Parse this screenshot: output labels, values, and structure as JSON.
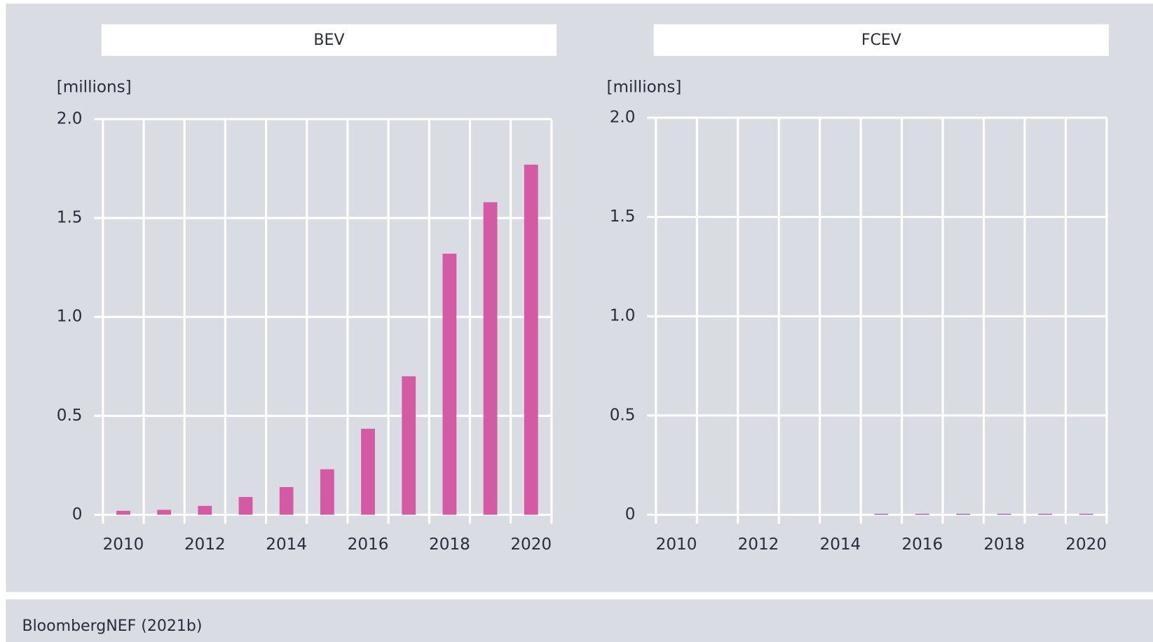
{
  "chart_data": [
    {
      "type": "bar",
      "title": "BEV",
      "y_label": "[millions]",
      "categories": [
        "2010",
        null,
        "2012",
        null,
        "2014",
        null,
        "2016",
        null,
        "2018",
        null,
        "2020"
      ],
      "values": [
        0.02,
        0.025,
        0.045,
        0.09,
        0.14,
        0.23,
        0.435,
        0.7,
        1.32,
        1.58,
        1.77
      ],
      "color": "#d45aa3",
      "ylim": [
        0,
        2
      ],
      "yticks": [
        0,
        0.5,
        {
          "value": 1,
          "label": "1.0"
        },
        1.5,
        {
          "value": 2,
          "label": "2.0"
        }
      ],
      "grid": true
    },
    {
      "type": "bar",
      "title": "FCEV",
      "y_label": "[millions]",
      "categories": [
        "2010",
        null,
        "2012",
        null,
        "2014",
        null,
        "2016",
        null,
        "2018",
        null,
        "2020"
      ],
      "values": [
        0,
        0,
        0,
        0,
        0,
        0.005,
        0.005,
        0.005,
        0.005,
        0.005,
        0.005
      ],
      "color": "#9b5fb0",
      "ylim": [
        0,
        2
      ],
      "yticks": [
        0,
        0.5,
        {
          "value": 1,
          "label": "1.0"
        },
        1.5,
        {
          "value": 2,
          "label": "2.0"
        }
      ],
      "grid": true
    }
  ],
  "source": "BloombergNEF (2021b)"
}
